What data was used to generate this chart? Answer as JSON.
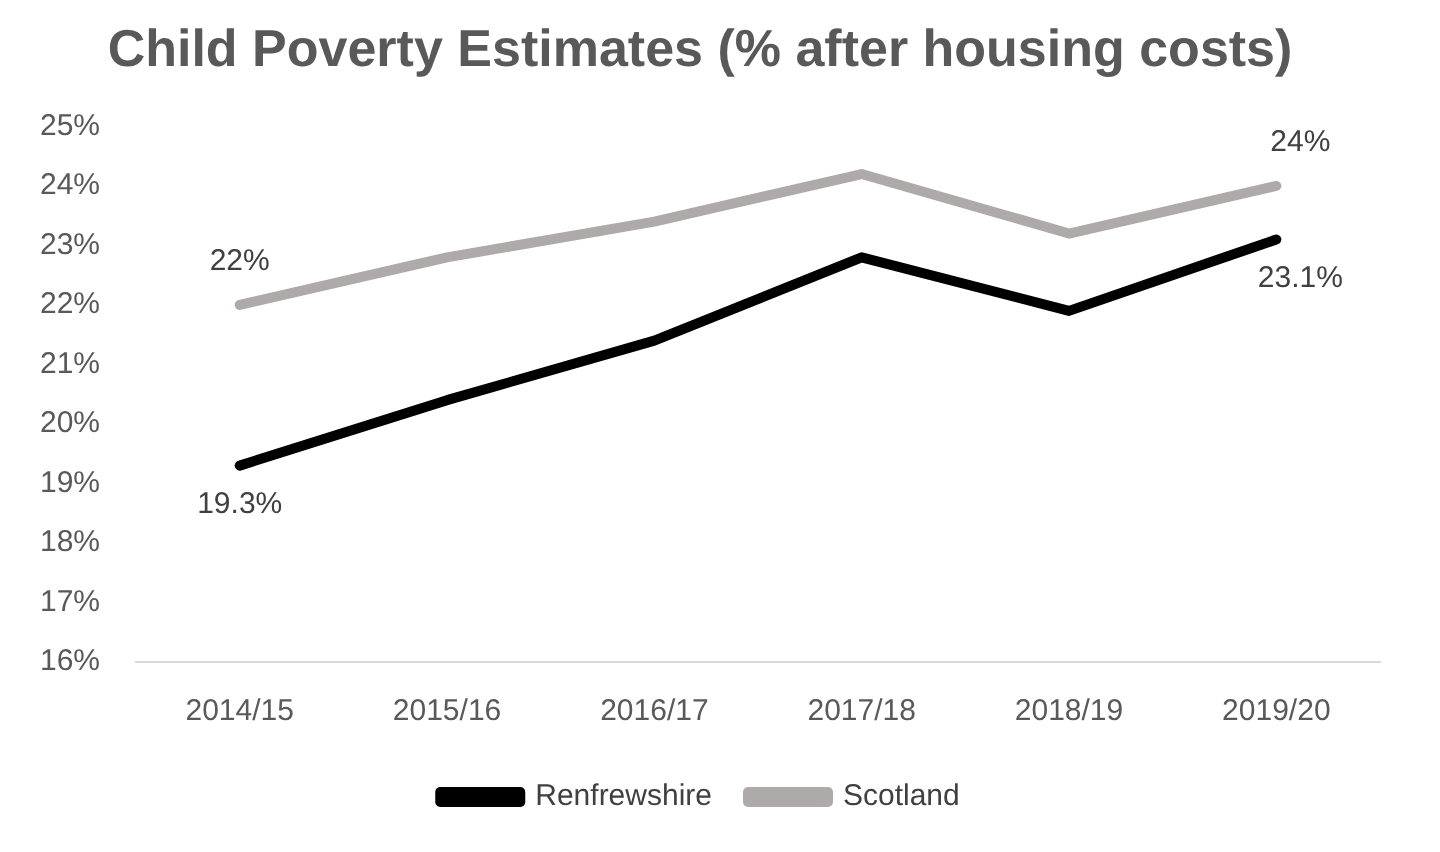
{
  "chart_data": {
    "type": "line",
    "title": "Child Poverty Estimates (% after housing costs)",
    "categories": [
      "2014/15",
      "2015/16",
      "2016/17",
      "2017/18",
      "2018/19",
      "2019/20"
    ],
    "series": [
      {
        "name": "Renfrewshire",
        "color": "#000000",
        "values": [
          19.3,
          20.4,
          21.4,
          22.8,
          21.9,
          23.1
        ],
        "value_labels": [
          "19.3%",
          null,
          null,
          null,
          null,
          "23.1%"
        ]
      },
      {
        "name": "Scotland",
        "color": "#aeaaaa",
        "values": [
          22,
          22.8,
          23.4,
          24.2,
          23.2,
          24
        ],
        "value_labels": [
          "22%",
          null,
          null,
          null,
          null,
          "24%"
        ]
      }
    ],
    "ylim": [
      16,
      25
    ],
    "yticks": [
      {
        "value": 16,
        "label": "16%"
      },
      {
        "value": 17,
        "label": "17%"
      },
      {
        "value": 18,
        "label": "18%"
      },
      {
        "value": 19,
        "label": "19%"
      },
      {
        "value": 20,
        "label": "20%"
      },
      {
        "value": 21,
        "label": "21%"
      },
      {
        "value": 22,
        "label": "22%"
      },
      {
        "value": 23,
        "label": "23%"
      },
      {
        "value": 24,
        "label": "24%"
      },
      {
        "value": 25,
        "label": "25%"
      }
    ],
    "grid": false,
    "legend": "bottom",
    "marker": "none",
    "line_style": "solid"
  }
}
